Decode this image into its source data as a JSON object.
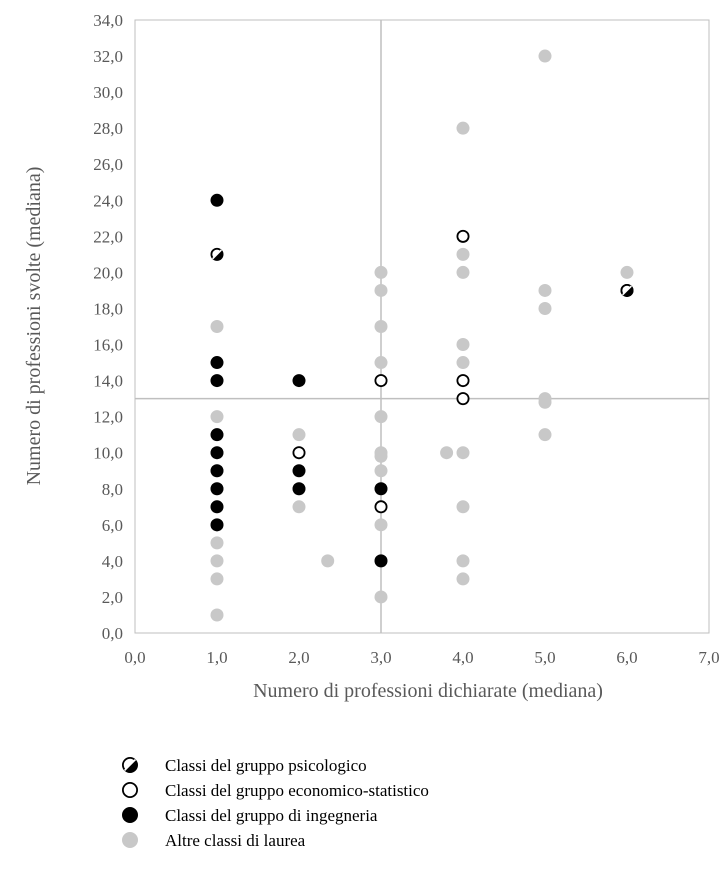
{
  "chart_data": {
    "type": "scatter",
    "xlabel": "Numero di professioni dichiarate (mediana)",
    "ylabel": "Numero di professioni svolte (mediana)",
    "xlim": [
      0,
      7
    ],
    "ylim": [
      0,
      34
    ],
    "x_ticks": [
      "0,0",
      "1,0",
      "2,0",
      "3,0",
      "4,0",
      "5,0",
      "6,0",
      "7,0"
    ],
    "y_ticks": [
      "0,0",
      "2,0",
      "4,0",
      "6,0",
      "8,0",
      "10,0",
      "12,0",
      "14,0",
      "16,0",
      "18,0",
      "20,0",
      "22,0",
      "24,0",
      "26,0",
      "28,0",
      "30,0",
      "32,0",
      "34,0"
    ],
    "reference_lines": {
      "x": 3.0,
      "y": 13.0
    },
    "grid": false,
    "legend_position": "bottom",
    "series": [
      {
        "name": "Altre classi di laurea",
        "style": "gray",
        "color": "#c8c8c8",
        "points": [
          [
            1,
            1
          ],
          [
            1,
            3
          ],
          [
            1,
            4
          ],
          [
            1,
            5
          ],
          [
            1,
            6
          ],
          [
            1,
            7
          ],
          [
            1,
            8
          ],
          [
            1,
            9
          ],
          [
            1,
            10
          ],
          [
            1,
            11
          ],
          [
            1,
            12
          ],
          [
            1,
            14
          ],
          [
            1,
            17
          ],
          [
            1,
            21
          ],
          [
            2,
            7
          ],
          [
            2,
            8
          ],
          [
            2,
            10
          ],
          [
            2,
            11
          ],
          [
            2.35,
            4
          ],
          [
            3,
            2
          ],
          [
            3,
            4
          ],
          [
            3,
            6
          ],
          [
            3,
            7
          ],
          [
            3,
            8
          ],
          [
            3,
            9
          ],
          [
            3,
            9.8
          ],
          [
            3,
            10
          ],
          [
            3,
            12
          ],
          [
            3,
            14
          ],
          [
            3,
            15
          ],
          [
            3,
            17
          ],
          [
            3,
            19
          ],
          [
            3,
            20
          ],
          [
            3.8,
            10
          ],
          [
            4,
            3
          ],
          [
            4,
            4
          ],
          [
            4,
            7
          ],
          [
            4,
            10
          ],
          [
            4,
            13
          ],
          [
            4,
            14
          ],
          [
            4,
            15
          ],
          [
            4,
            16
          ],
          [
            4,
            20
          ],
          [
            4,
            21
          ],
          [
            4,
            28
          ],
          [
            5,
            11
          ],
          [
            5,
            12.8
          ],
          [
            5,
            13
          ],
          [
            5,
            18
          ],
          [
            5,
            19
          ],
          [
            5,
            32
          ],
          [
            6,
            20
          ]
        ]
      },
      {
        "name": "Classi del gruppo di ingegneria",
        "style": "black",
        "color": "#000000",
        "points": [
          [
            1,
            6
          ],
          [
            1,
            7
          ],
          [
            1,
            8
          ],
          [
            1,
            9
          ],
          [
            1,
            10
          ],
          [
            1,
            11
          ],
          [
            1,
            14
          ],
          [
            1,
            15
          ],
          [
            1,
            24
          ],
          [
            2,
            8
          ],
          [
            2,
            9
          ],
          [
            2,
            14
          ],
          [
            3,
            4
          ],
          [
            3,
            8
          ]
        ]
      },
      {
        "name": "Classi del gruppo economico-statistico",
        "style": "open",
        "color": "#000000",
        "points": [
          [
            2,
            10
          ],
          [
            3,
            7
          ],
          [
            3,
            14
          ],
          [
            4,
            13
          ],
          [
            4,
            14
          ],
          [
            4,
            22
          ],
          [
            6,
            19
          ]
        ]
      },
      {
        "name": "Classi del gruppo psicologico",
        "style": "hatched",
        "color": "#000000",
        "points": [
          [
            1,
            21
          ],
          [
            6,
            19
          ]
        ]
      }
    ],
    "legend": [
      {
        "style": "hatched",
        "label": "Classi del gruppo psicologico"
      },
      {
        "style": "open",
        "label": "Classi del gruppo economico-statistico"
      },
      {
        "style": "black",
        "label": "Classi del gruppo di ingegneria"
      },
      {
        "style": "gray",
        "label": "Altre classi di laurea"
      }
    ]
  }
}
